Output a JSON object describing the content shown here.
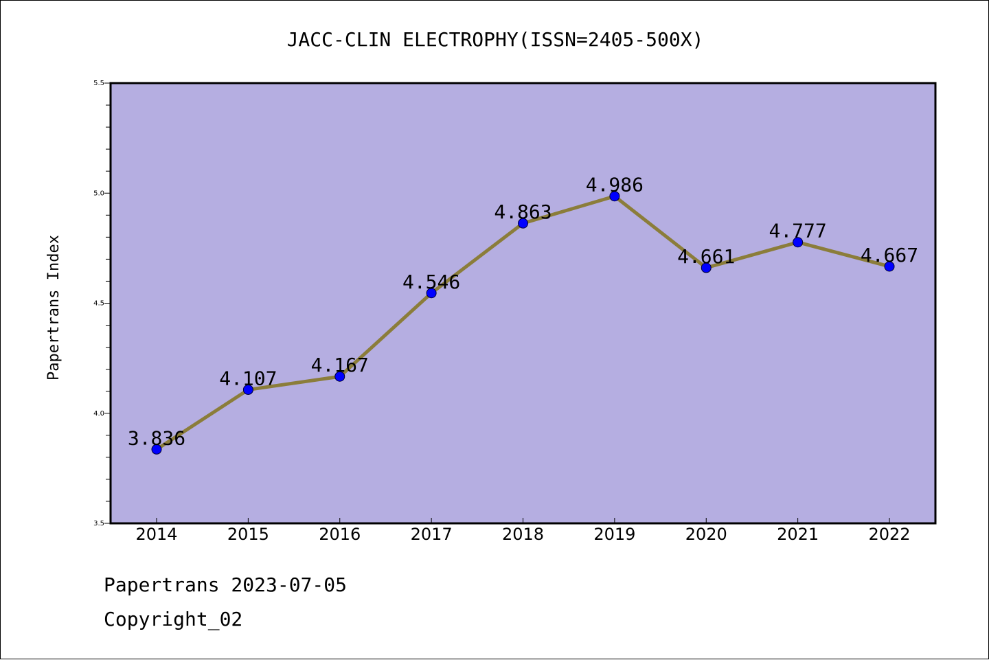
{
  "chart_data": {
    "type": "line",
    "title": "JACC-CLIN ELECTROPHY(ISSN=2405-500X)",
    "xlabel": "",
    "ylabel": "Papertrans Index",
    "categories": [
      "2014",
      "2015",
      "2016",
      "2017",
      "2018",
      "2019",
      "2020",
      "2021",
      "2022"
    ],
    "values": [
      3.836,
      4.107,
      4.167,
      4.546,
      4.863,
      4.986,
      4.661,
      4.777,
      4.667
    ],
    "value_labels": [
      "3.836",
      "4.107",
      "4.167",
      "4.546",
      "4.863",
      "4.986",
      "4.661",
      "4.777",
      "4.667"
    ],
    "ylim": [
      3.5,
      5.5
    ],
    "yticks": [
      "3.5",
      "4.0",
      "4.5",
      "5.0",
      "5.5"
    ],
    "grid": false,
    "colors": {
      "plot_background": "#b5aee1",
      "line": "#8b7d3a",
      "marker": "#0000ff"
    }
  },
  "footer": {
    "line1": "Papertrans 2023-07-05",
    "line2": "Copyright_02"
  }
}
